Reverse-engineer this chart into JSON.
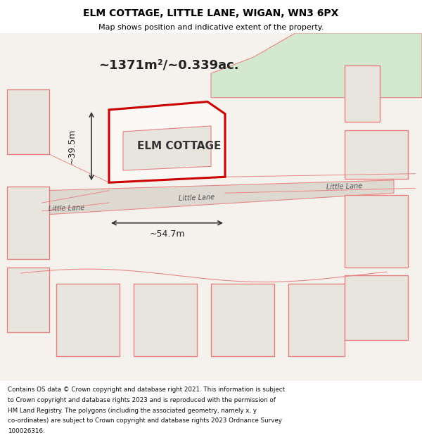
{
  "title": "ELM COTTAGE, LITTLE LANE, WIGAN, WN3 6PX",
  "subtitle": "Map shows position and indicative extent of the property.",
  "footer": "Contains OS data © Crown copyright and database right 2021. This information is subject to Crown copyright and database rights 2023 and is reproduced with the permission of HM Land Registry. The polygons (including the associated geometry, namely x, y co-ordinates) are subject to Crown copyright and database rights 2023 Ordnance Survey 100026316.",
  "bg_color": "#f0ede8",
  "map_bg": "#f5f2ee",
  "building_fill": "#e8e4de",
  "building_stroke": "#e88080",
  "highlight_fill": "#f5f0ee",
  "highlight_stroke": "#cc0000",
  "road_color": "#e88888",
  "green_fill": "#d4e8d0",
  "label_elm": "ELM COTTAGE",
  "label_area": "~1371m²/~0.339ac.",
  "label_width": "~54.7m",
  "label_height": "~39.5m",
  "road_label": "Little Lane",
  "footer_bg": "#ffffff"
}
